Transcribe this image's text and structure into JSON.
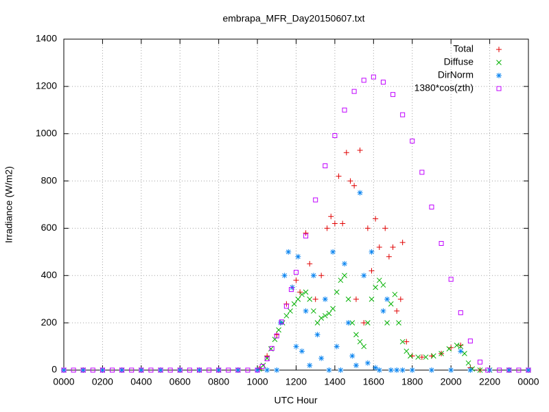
{
  "chart_data": {
    "type": "scatter",
    "title": "embrapa_MFR_Day20150607.txt",
    "x_label": "UTC Hour",
    "y_label": "Irradiance (W/m2)",
    "xlim": [
      0,
      24
    ],
    "ylim": [
      0,
      1400
    ],
    "xticks": [
      {
        "value": 0,
        "label": "0000"
      },
      {
        "value": 2,
        "label": "0200"
      },
      {
        "value": 4,
        "label": "0400"
      },
      {
        "value": 6,
        "label": "0600"
      },
      {
        "value": 8,
        "label": "0800"
      },
      {
        "value": 10,
        "label": "1000"
      },
      {
        "value": 12,
        "label": "1200"
      },
      {
        "value": 14,
        "label": "1400"
      },
      {
        "value": 16,
        "label": "1600"
      },
      {
        "value": 18,
        "label": "1800"
      },
      {
        "value": 20,
        "label": "2000"
      },
      {
        "value": 22,
        "label": "2200"
      },
      {
        "value": 24,
        "label": "0000"
      }
    ],
    "yticks": [
      0,
      200,
      400,
      600,
      800,
      1000,
      1200,
      1400
    ],
    "grid": true,
    "legend": "top-right",
    "series": [
      {
        "name": "Total",
        "color": "#e00000",
        "marker": "plus",
        "x": [
          0,
          1,
          2,
          3,
          4,
          5,
          6,
          7,
          8,
          9,
          10.1,
          10.5,
          11.0,
          11.5,
          11.8,
          12.0,
          12.2,
          12.5,
          12.7,
          13.0,
          13.3,
          13.6,
          13.8,
          14.0,
          14.2,
          14.4,
          14.6,
          14.8,
          15.0,
          15.1,
          15.3,
          15.5,
          15.7,
          15.9,
          16.1,
          16.3,
          16.6,
          16.8,
          17.0,
          17.2,
          17.4,
          17.5,
          17.7,
          18.0,
          18.5,
          19.0,
          19.5,
          20.0,
          20.5,
          21.0,
          21.5,
          22,
          23,
          24
        ],
        "values": [
          0,
          0,
          0,
          0,
          0,
          0,
          0,
          0,
          0,
          0,
          5,
          60,
          150,
          280,
          350,
          380,
          330,
          580,
          450,
          300,
          400,
          600,
          650,
          620,
          820,
          620,
          920,
          800,
          780,
          300,
          930,
          200,
          600,
          420,
          640,
          520,
          600,
          480,
          520,
          250,
          300,
          540,
          120,
          60,
          55,
          60,
          70,
          95,
          105,
          10,
          0,
          0,
          0,
          0
        ]
      },
      {
        "name": "Diffuse",
        "color": "#00b000",
        "marker": "cross",
        "x": [
          0,
          1,
          2,
          3,
          4,
          5,
          6,
          7,
          8,
          9,
          10.1,
          10.3,
          10.5,
          10.7,
          10.9,
          11.1,
          11.3,
          11.5,
          11.7,
          11.9,
          12.1,
          12.3,
          12.5,
          12.7,
          12.9,
          13.1,
          13.3,
          13.5,
          13.7,
          13.9,
          14.1,
          14.3,
          14.5,
          14.7,
          14.9,
          15.1,
          15.3,
          15.5,
          15.7,
          15.9,
          16.1,
          16.3,
          16.5,
          16.7,
          16.9,
          17.1,
          17.3,
          17.5,
          17.7,
          17.9,
          18.3,
          18.7,
          19.1,
          19.5,
          19.9,
          20.3,
          20.5,
          20.7,
          20.9,
          21.1,
          21.5,
          22,
          23,
          24
        ],
        "values": [
          0,
          0,
          0,
          0,
          0,
          0,
          0,
          0,
          0,
          0,
          5,
          20,
          50,
          90,
          130,
          170,
          200,
          230,
          250,
          280,
          300,
          320,
          330,
          300,
          250,
          200,
          220,
          230,
          240,
          260,
          330,
          380,
          400,
          300,
          200,
          150,
          120,
          100,
          200,
          300,
          350,
          380,
          360,
          200,
          280,
          320,
          200,
          120,
          80,
          60,
          55,
          55,
          60,
          70,
          90,
          105,
          100,
          70,
          30,
          5,
          0,
          0,
          0,
          0
        ]
      },
      {
        "name": "DirNorm",
        "color": "#0a84f0",
        "marker": "star",
        "x": [
          0,
          1,
          2,
          3,
          4,
          5,
          6,
          7,
          8,
          9,
          10,
          10.5,
          11.0,
          11.2,
          11.4,
          11.6,
          11.8,
          12.0,
          12.1,
          12.3,
          12.5,
          12.7,
          12.9,
          13.1,
          13.3,
          13.5,
          13.7,
          13.9,
          14.1,
          14.3,
          14.5,
          14.7,
          14.9,
          15.1,
          15.3,
          15.5,
          15.7,
          15.9,
          16.1,
          16.3,
          16.5,
          16.7,
          16.9,
          17.2,
          17.5,
          18,
          19,
          20,
          20.5,
          21,
          22,
          23,
          24
        ],
        "values": [
          0,
          0,
          0,
          0,
          0,
          0,
          0,
          0,
          0,
          0,
          0,
          0,
          0,
          200,
          400,
          500,
          350,
          100,
          480,
          80,
          250,
          20,
          400,
          150,
          50,
          300,
          0,
          500,
          100,
          0,
          450,
          200,
          60,
          20,
          750,
          400,
          30,
          500,
          10,
          0,
          250,
          300,
          0,
          0,
          0,
          0,
          0,
          0,
          80,
          0,
          0,
          0,
          0
        ]
      },
      {
        "name": "1380*cos(zth)",
        "color": "#c000ff",
        "marker": "square",
        "x": [
          0,
          0.5,
          1,
          1.5,
          2,
          2.5,
          3,
          3.5,
          4,
          4.5,
          5,
          5.5,
          6,
          6.5,
          7,
          7.5,
          8,
          8.5,
          9,
          9.5,
          10,
          10.25,
          10.5,
          10.75,
          11,
          11.25,
          11.5,
          11.75,
          12,
          12.5,
          13,
          13.5,
          14,
          14.5,
          15,
          15.5,
          16,
          16.5,
          17,
          17.5,
          18,
          18.5,
          19,
          19.5,
          20,
          20.5,
          21,
          21.5,
          21.9,
          22.5,
          23,
          23.5,
          24
        ],
        "values": [
          0,
          0,
          0,
          0,
          0,
          0,
          0,
          0,
          0,
          0,
          0,
          0,
          0,
          0,
          0,
          0,
          0,
          0,
          0,
          0,
          0,
          16,
          48,
          92,
          145,
          204,
          270,
          341,
          414,
          567,
          720,
          864,
          992,
          1100,
          1179,
          1226,
          1240,
          1218,
          1166,
          1080,
          969,
          837,
          690,
          536,
          384,
          243,
          123,
          34,
          0,
          0,
          0,
          0,
          0
        ]
      }
    ]
  }
}
